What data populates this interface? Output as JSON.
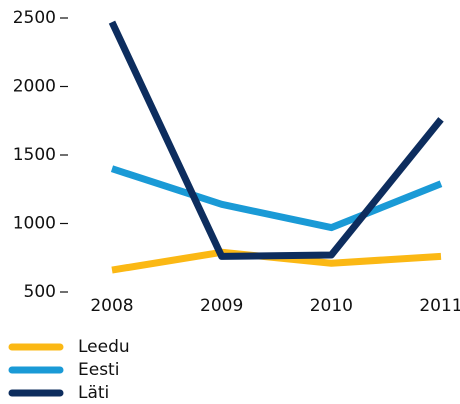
{
  "chart_data": {
    "type": "line",
    "categories": [
      "2008",
      "2009",
      "2010",
      "2011"
    ],
    "series": [
      {
        "name": "Leedu",
        "color": "#fbb814",
        "values": [
          660,
          790,
          710,
          760
        ]
      },
      {
        "name": "Eesti",
        "color": "#1a9ad6",
        "values": [
          1400,
          1140,
          970,
          1290
        ]
      },
      {
        "name": "Läti",
        "color": "#0d2d5e",
        "values": [
          2470,
          760,
          770,
          1760
        ]
      }
    ],
    "ylim": [
      500,
      2500
    ],
    "yticks": [
      500,
      1000,
      1500,
      2000,
      2500
    ],
    "legend": "bottom-left"
  }
}
